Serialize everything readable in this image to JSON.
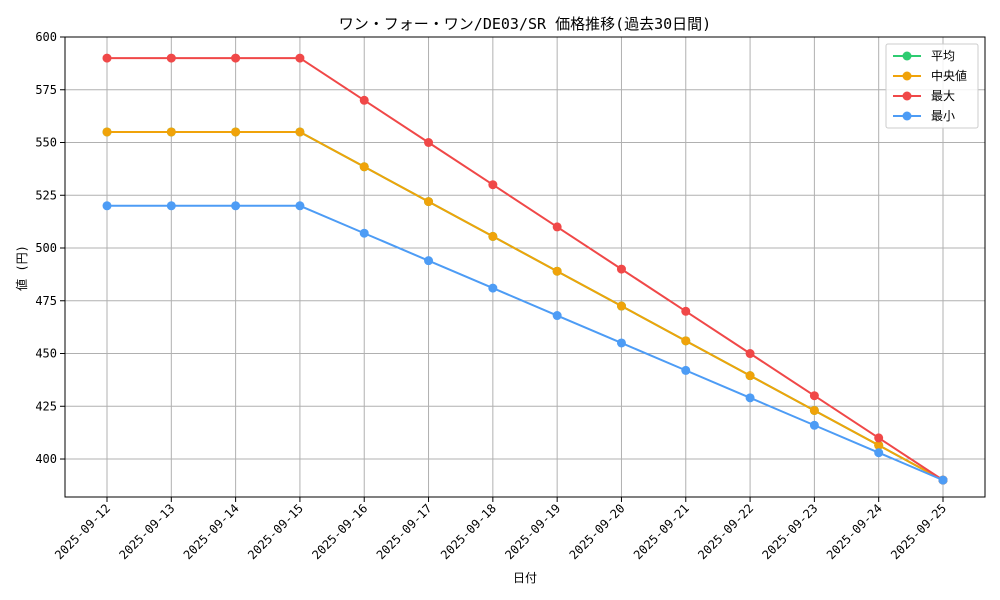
{
  "chart_data": {
    "type": "line",
    "title": "ワン・フォー・ワン/DE03/SR 価格推移(過去30日間)",
    "xlabel": "日付",
    "ylabel": "値 (円)",
    "ylim": [
      382,
      600
    ],
    "yticks": [
      400,
      425,
      450,
      475,
      500,
      525,
      550,
      575,
      600
    ],
    "grid": true,
    "legend_position": "top-right",
    "categories": [
      "2025-09-12",
      "2025-09-13",
      "2025-09-14",
      "2025-09-15",
      "2025-09-16",
      "2025-09-17",
      "2025-09-18",
      "2025-09-19",
      "2025-09-20",
      "2025-09-21",
      "2025-09-22",
      "2025-09-23",
      "2025-09-24",
      "2025-09-25"
    ],
    "series": [
      {
        "name": "平均",
        "color": "#2ecc71",
        "values": [
          555,
          555,
          555,
          555,
          538.5,
          522,
          505.5,
          489,
          472.5,
          456,
          439.5,
          423,
          406.5,
          390
        ]
      },
      {
        "name": "中央値",
        "color": "#f0a30a",
        "values": [
          555,
          555,
          555,
          555,
          538.5,
          522,
          505.5,
          489,
          472.5,
          456,
          439.5,
          423,
          406.5,
          390
        ]
      },
      {
        "name": "最大",
        "color": "#f04848",
        "values": [
          590,
          590,
          590,
          590,
          570,
          550,
          530,
          510,
          490,
          470,
          450,
          430,
          410,
          390
        ]
      },
      {
        "name": "最小",
        "color": "#4d9cf5",
        "values": [
          520,
          520,
          520,
          520,
          507,
          494,
          481,
          468,
          455,
          442,
          429,
          416,
          403,
          390
        ]
      }
    ]
  }
}
